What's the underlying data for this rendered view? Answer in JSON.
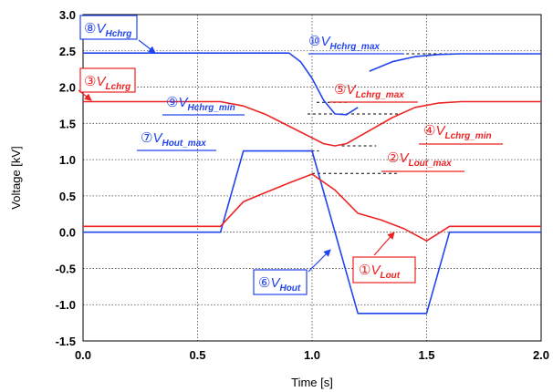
{
  "chart_data": {
    "type": "line",
    "xlabel": "Time [s]",
    "ylabel": "Voltage [kV]",
    "xlim": [
      0.0,
      2.0
    ],
    "ylim": [
      -1.5,
      3.0
    ],
    "xticks": [
      "0.0",
      "0.5",
      "1.0",
      "1.5",
      "2.0"
    ],
    "yticks": [
      "3.0",
      "2.5",
      "2.0",
      "1.5",
      "1.0",
      "0.5",
      "0.0",
      "-0.5",
      "-1.0",
      "-1.5"
    ],
    "grid": "dotted",
    "colors": {
      "blue": "#2244ee",
      "red": "#ee2222",
      "dash": "#000000"
    },
    "series": [
      {
        "color": "#2244ee",
        "x": [
          0.0,
          0.9,
          0.95,
          1.0,
          1.05,
          1.1,
          1.15,
          1.2
        ],
        "y": [
          2.47,
          2.47,
          2.35,
          2.12,
          1.82,
          1.63,
          1.62,
          1.72
        ]
      },
      {
        "color": "#2244ee",
        "x": [
          1.25,
          1.35,
          1.45,
          1.55,
          1.65,
          2.0
        ],
        "y": [
          2.22,
          2.35,
          2.42,
          2.45,
          2.46,
          2.46
        ]
      },
      {
        "color": "#ee2222",
        "x": [
          0.0,
          0.6,
          0.7,
          0.8,
          0.9,
          1.0,
          1.05,
          1.1,
          1.15,
          1.25,
          1.35,
          1.45,
          1.55,
          1.65,
          2.0
        ],
        "y": [
          1.8,
          1.8,
          1.74,
          1.62,
          1.46,
          1.3,
          1.22,
          1.19,
          1.22,
          1.4,
          1.58,
          1.72,
          1.78,
          1.8,
          1.8
        ]
      },
      {
        "color": "#2244ee",
        "x": [
          0.0,
          0.6,
          0.7,
          1.0,
          1.2,
          1.5,
          1.6,
          2.0
        ],
        "y": [
          0.0,
          0.0,
          1.12,
          1.12,
          -1.12,
          -1.12,
          0.0,
          0.0
        ]
      },
      {
        "color": "#ee2222",
        "x": [
          0.0,
          0.6,
          0.7,
          0.8,
          0.9,
          1.0,
          1.1,
          1.2,
          1.3,
          1.4,
          1.5,
          1.55,
          1.6,
          2.0
        ],
        "y": [
          0.08,
          0.08,
          0.42,
          0.55,
          0.68,
          0.8,
          0.58,
          0.26,
          0.17,
          0.05,
          -0.12,
          -0.02,
          0.08,
          0.08
        ]
      }
    ],
    "reference_lines": [
      {
        "x": [
          1.22,
          1.74
        ],
        "y": 2.46
      },
      {
        "x": [
          0.98,
          1.38
        ],
        "y": 1.63
      },
      {
        "x": [
          1.02,
          1.16
        ],
        "y": 1.79
      },
      {
        "x": [
          1.13,
          1.28
        ],
        "y": 1.19
      },
      {
        "x": [
          0.95,
          1.03
        ],
        "y": 1.12
      },
      {
        "x": [
          1.0,
          1.37
        ],
        "y": 0.81
      }
    ],
    "annotations": [
      {
        "num": "⑧",
        "base": "V",
        "sub": "Hchrg",
        "color": "#2244ee",
        "boxed": true
      },
      {
        "num": "⑩",
        "base": "V",
        "sub": "Hchrg_max",
        "color": "#2244ee",
        "boxed": false
      },
      {
        "num": "③",
        "base": "V",
        "sub": "Lchrg",
        "color": "#ee2222",
        "boxed": true
      },
      {
        "num": "⑤",
        "base": "V",
        "sub": "Lchrg_max",
        "color": "#ee2222",
        "boxed": false
      },
      {
        "num": "⑨",
        "base": "V",
        "sub": "Hchrg_min",
        "color": "#2244ee",
        "boxed": false
      },
      {
        "num": "⑦",
        "base": "V",
        "sub": "Hout_max",
        "color": "#2244ee",
        "boxed": false
      },
      {
        "num": "④",
        "base": "V",
        "sub": "Lchrg_min",
        "color": "#ee2222",
        "boxed": false
      },
      {
        "num": "②",
        "base": "V",
        "sub": "Lout_max",
        "color": "#ee2222",
        "boxed": false
      },
      {
        "num": "⑥",
        "base": "V",
        "sub": "Hout",
        "color": "#2244ee",
        "boxed": true
      },
      {
        "num": "①",
        "base": "V",
        "sub": "Lout",
        "color": "#ee2222",
        "boxed": true
      }
    ]
  }
}
